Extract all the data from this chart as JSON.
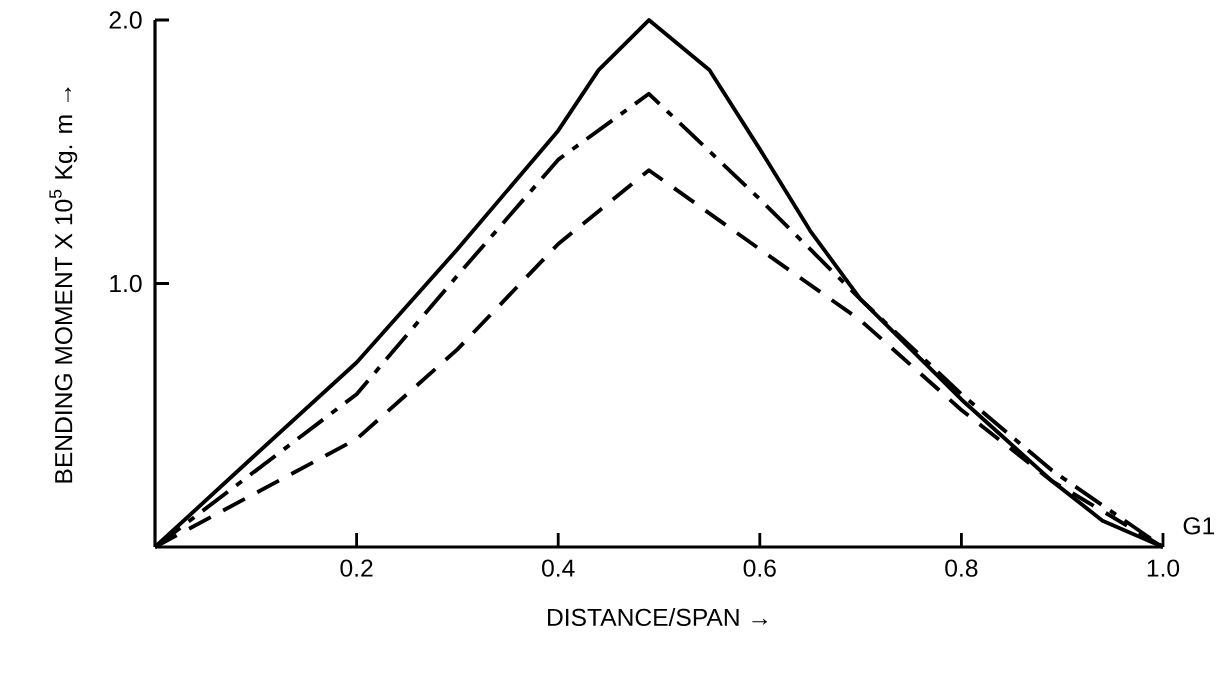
{
  "chart_data": {
    "type": "line",
    "xlabel": "DISTANCE/SPAN →",
    "ylabel": "BENDING MOMENT X 10$^{5}$ Kg. m →",
    "x": [
      0,
      0.094,
      0.2,
      0.3,
      0.4,
      0.44,
      0.49,
      0.55,
      0.6,
      0.65,
      0.7,
      0.8,
      0.89,
      0.94,
      1.0
    ],
    "series": [
      {
        "color": "#000000",
        "line_style": "solid",
        "values": [
          0,
          0.33,
          0.7,
          1.13,
          1.58,
          1.81,
          2.0,
          1.81,
          1.51,
          1.2,
          0.94,
          0.56,
          0.25,
          0.1,
          0
        ]
      },
      {
        "color": "#000000",
        "line_style": "dashdotted",
        "x": [
          0,
          0.2,
          0.3,
          0.4,
          0.49,
          0.6,
          0.7,
          0.8,
          0.89,
          1.0
        ],
        "values": [
          0,
          0.58,
          1.03,
          1.47,
          1.72,
          1.32,
          0.94,
          0.58,
          0.29,
          0
        ]
      },
      {
        "color": "#000000",
        "line_style": "dashed",
        "x": [
          0,
          0.2,
          0.3,
          0.4,
          0.49,
          0.6,
          0.7,
          0.8,
          0.89,
          1.0
        ],
        "values": [
          0,
          0.41,
          0.75,
          1.15,
          1.43,
          1.13,
          0.86,
          0.52,
          0.25,
          0
        ]
      }
    ],
    "xlim": [
      0,
      1.0
    ],
    "ylim": [
      0,
      2.0
    ],
    "xticks": [
      {
        "value": 0.2,
        "label": "0.2"
      },
      {
        "value": 0.4,
        "label": "0.4"
      },
      {
        "value": 0.6,
        "label": "0.6"
      },
      {
        "value": 0.8,
        "label": "0.8"
      },
      {
        "value": 1.0,
        "label": "1.0"
      }
    ],
    "yticks": [
      {
        "value": 1.0,
        "label": "1.0"
      },
      {
        "value": 2.0,
        "label": "2.0"
      }
    ],
    "annotations": [
      {
        "text": "G1",
        "x": 1.0,
        "y": 0
      }
    ],
    "grid": false,
    "marker": "none"
  }
}
